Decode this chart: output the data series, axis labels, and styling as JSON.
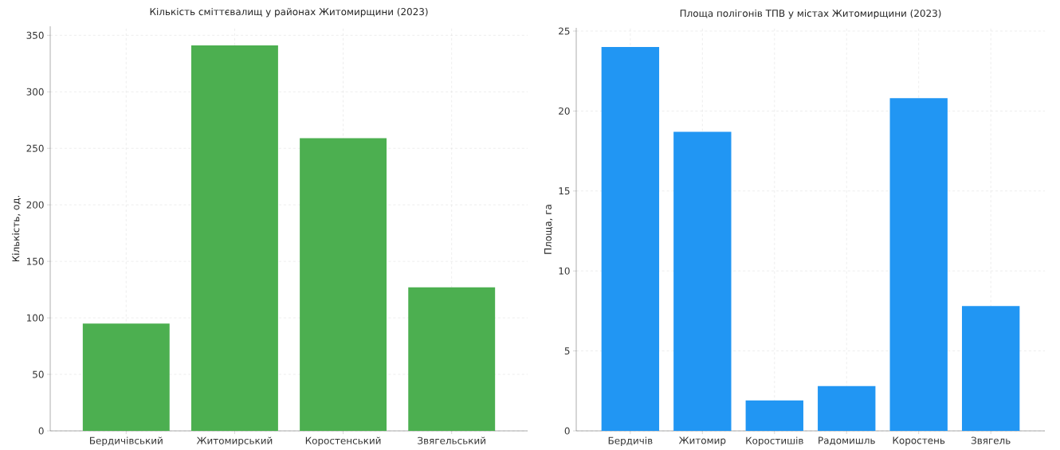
{
  "chart_data": [
    {
      "type": "bar",
      "title": "Кількість сміттєвалищ у районах Житомирщини (2023)",
      "ylabel": "Кількість, од.",
      "categories": [
        "Бердичівський",
        "Житомирський",
        "Коростенський",
        "Звягельський"
      ],
      "values": [
        95,
        341,
        259,
        127
      ],
      "color": "#4caf50",
      "ylim": [
        0,
        358
      ],
      "yticks": [
        0,
        50,
        100,
        150,
        200,
        250,
        300,
        350
      ],
      "grid": true
    },
    {
      "type": "bar",
      "title": "Площа полігонів ТПВ у містах Житомирщини (2023)",
      "ylabel": "Площа, га",
      "categories": [
        "Бердичів",
        "Житомир",
        "Коростишів",
        "Радомишль",
        "Коростень",
        "Звягель"
      ],
      "values": [
        24.0,
        18.7,
        1.9,
        2.8,
        20.8,
        7.8
      ],
      "color": "#2196f3",
      "ylim": [
        0,
        25.2
      ],
      "yticks": [
        0,
        5,
        10,
        15,
        20,
        25
      ],
      "grid": true
    }
  ]
}
